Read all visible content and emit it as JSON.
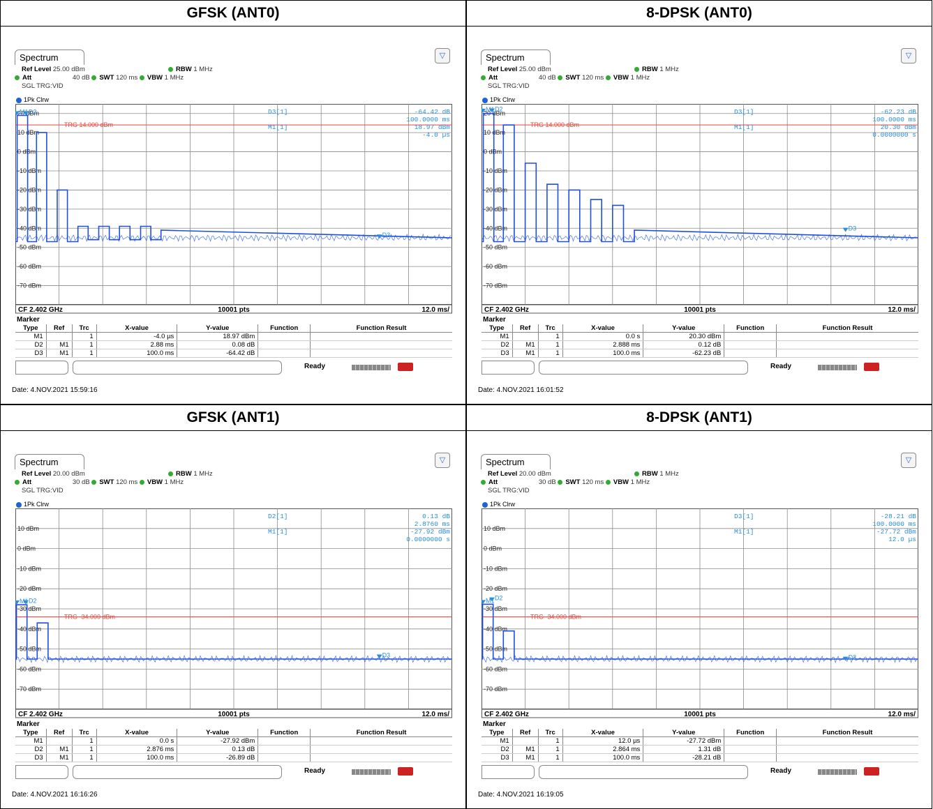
{
  "panels": [
    {
      "title": "GFSK (ANT0)",
      "tab": "Spectrum",
      "ref_level_label": "Ref Level",
      "ref_level_value": "25.00 dBm",
      "att_label": "Att",
      "att_value": "40 dB",
      "swt_label": "SWT",
      "swt_value": "120 ms",
      "rbw_label": "RBW",
      "rbw_value": "1 MHz",
      "vbw_label": "VBW",
      "vbw_value": "1 MHz",
      "trigger": "SGL TRG:VID",
      "trace": "1Pk Clrw",
      "y_ticks": [
        "20 dBm",
        "10 dBm",
        "0 dBm",
        "-10 dBm",
        "-20 dBm",
        "-30 dBm",
        "-40 dBm",
        "-50 dBm",
        "-60 dBm",
        "-70 dBm"
      ],
      "trg_label": "TRG  14.000 dBm",
      "readout_1_name": "D3[1]",
      "readout_1_value": "-64.42 dB",
      "readout_1_x": "100.0000 ms",
      "readout_2_name": "M1[1]",
      "readout_2_value": "18.97 dBm",
      "readout_2_x": "-4.0 µs",
      "footer_left": "CF 2.402 GHz",
      "footer_center": "10001 pts",
      "footer_right": "12.0 ms/",
      "table_headers": [
        "Type",
        "Ref",
        "Trc",
        "X-value",
        "Y-value",
        "Function",
        "Function Result"
      ],
      "rows": [
        [
          "M1",
          "",
          "1",
          "-4.0 µs",
          "18.97 dBm"
        ],
        [
          "D2",
          "M1",
          "1",
          "2.88 ms",
          "0.08 dB"
        ],
        [
          "D3",
          "M1",
          "1",
          "100.0 ms",
          "-64.42 dB"
        ]
      ],
      "status": "Ready",
      "date": "Date: 4.NOV.2021  15:59:16"
    },
    {
      "title": "8-DPSK (ANT0)",
      "tab": "Spectrum",
      "ref_level_label": "Ref Level",
      "ref_level_value": "25.00 dBm",
      "att_label": "Att",
      "att_value": "40 dB",
      "swt_label": "SWT",
      "swt_value": "120 ms",
      "rbw_label": "RBW",
      "rbw_value": "1 MHz",
      "vbw_label": "VBW",
      "vbw_value": "1 MHz",
      "trigger": "SGL TRG:VID",
      "trace": "1Pk Clrw",
      "y_ticks": [
        "20 dBm",
        "10 dBm",
        "0 dBm",
        "-10 dBm",
        "-20 dBm",
        "-30 dBm",
        "-40 dBm",
        "-50 dBm",
        "-60 dBm",
        "-70 dBm"
      ],
      "trg_label": "TRG  14.000 dBm",
      "readout_1_name": "D3[1]",
      "readout_1_value": "-62.23 dB",
      "readout_1_x": "100.0000 ms",
      "readout_2_name": "M1[1]",
      "readout_2_value": "20.30 dBm",
      "readout_2_x": "0.0000000 s",
      "footer_left": "CF 2.402 GHz",
      "footer_center": "10001 pts",
      "footer_right": "12.0 ms/",
      "table_headers": [
        "Type",
        "Ref",
        "Trc",
        "X-value",
        "Y-value",
        "Function",
        "Function Result"
      ],
      "rows": [
        [
          "M1",
          "",
          "1",
          "0.0 s",
          "20.30 dBm"
        ],
        [
          "D2",
          "M1",
          "1",
          "2.888 ms",
          "0.12 dB"
        ],
        [
          "D3",
          "M1",
          "1",
          "100.0 ms",
          "-62.23 dB"
        ]
      ],
      "status": "Ready",
      "date": "Date: 4.NOV.2021  16:01:52"
    },
    {
      "title": "GFSK (ANT1)",
      "tab": "Spectrum",
      "ref_level_label": "Ref Level",
      "ref_level_value": "20.00 dBm",
      "att_label": "Att",
      "att_value": "30 dB",
      "swt_label": "SWT",
      "swt_value": "120 ms",
      "rbw_label": "RBW",
      "rbw_value": "1 MHz",
      "vbw_label": "VBW",
      "vbw_value": "1 MHz",
      "trigger": "SGL TRG:VID",
      "trace": "1Pk Clrw",
      "y_ticks": [
        "10 dBm",
        "0 dBm",
        "-10 dBm",
        "-20 dBm",
        "-30 dBm",
        "-40 dBm",
        "-50 dBm",
        "-60 dBm",
        "-70 dBm"
      ],
      "trg_label": "TRG  -34.000 dBm",
      "readout_1_name": "D2[1]",
      "readout_1_value": "0.13 dB",
      "readout_1_x": "2.8760 ms",
      "readout_2_name": "M1[1]",
      "readout_2_value": "-27.92 dBm",
      "readout_2_x": "0.0000000 s",
      "footer_left": "CF 2.402 GHz",
      "footer_center": "10001 pts",
      "footer_right": "12.0 ms/",
      "table_headers": [
        "Type",
        "Ref",
        "Trc",
        "X-value",
        "Y-value",
        "Function",
        "Function Result"
      ],
      "rows": [
        [
          "M1",
          "",
          "1",
          "0.0 s",
          "-27.92 dBm"
        ],
        [
          "D2",
          "M1",
          "1",
          "2.876 ms",
          "0.13 dB"
        ],
        [
          "D3",
          "M1",
          "1",
          "100.0 ms",
          "-26.89 dB"
        ]
      ],
      "status": "Ready",
      "date": "Date: 4.NOV.2021  16:16:26"
    },
    {
      "title": "8-DPSK (ANT1)",
      "tab": "Spectrum",
      "ref_level_label": "Ref Level",
      "ref_level_value": "20.00 dBm",
      "att_label": "Att",
      "att_value": "30 dB",
      "swt_label": "SWT",
      "swt_value": "120 ms",
      "rbw_label": "RBW",
      "rbw_value": "1 MHz",
      "vbw_label": "VBW",
      "vbw_value": "1 MHz",
      "trigger": "SGL TRG:VID",
      "trace": "1Pk Clrw",
      "y_ticks": [
        "10 dBm",
        "0 dBm",
        "-10 dBm",
        "-20 dBm",
        "-30 dBm",
        "-40 dBm",
        "-50 dBm",
        "-60 dBm",
        "-70 dBm"
      ],
      "trg_label": "TRG  -34.000 dBm",
      "readout_1_name": "D3[1]",
      "readout_1_value": "-28.21 dB",
      "readout_1_x": "100.0000 ms",
      "readout_2_name": "M1[1]",
      "readout_2_value": "-27.72 dBm",
      "readout_2_x": "12.0 µs",
      "footer_left": "CF 2.402 GHz",
      "footer_center": "10001 pts",
      "footer_right": "12.0 ms/",
      "table_headers": [
        "Type",
        "Ref",
        "Trc",
        "X-value",
        "Y-value",
        "Function",
        "Function Result"
      ],
      "rows": [
        [
          "M1",
          "",
          "1",
          "12.0 µs",
          "-27.72 dBm"
        ],
        [
          "D2",
          "M1",
          "1",
          "2.864 ms",
          "1.31 dB"
        ],
        [
          "D3",
          "M1",
          "1",
          "100.0 ms",
          "-28.21 dB"
        ]
      ],
      "status": "Ready",
      "date": "Date: 4.NOV.2021  16:19:05"
    }
  ],
  "colors": {
    "trace": "#1f4fe0",
    "trigger_line": "#e8443a",
    "marker_text": "#2a8fd8",
    "grid": "#8a8a8a"
  },
  "chart_data": [
    {
      "type": "line",
      "xlabel": "",
      "ylabel": "",
      "xlim": [
        0,
        120
      ],
      "ylim": [
        -80,
        25
      ],
      "trigger_level_dbm": 14,
      "series": [
        {
          "x": [
            0,
            0.5,
            0.5,
            3.38,
            3.38,
            5.8,
            5.8,
            8.6,
            8.6,
            11.5,
            11.5,
            14.3,
            14.3,
            17.2,
            17.2,
            20,
            20,
            22.9,
            22.9,
            25.8,
            25.8,
            28.6,
            28.6,
            31.5,
            31.5,
            34.4,
            34.4,
            37.2,
            37.2,
            40,
            40,
            120
          ],
          "y": [
            -47,
            -47,
            19,
            19,
            -47,
            -47,
            10,
            10,
            -47,
            -47,
            -20,
            -20,
            -47,
            -47,
            -39,
            -39,
            -46,
            -46,
            -39,
            -39,
            -46,
            -46,
            -39,
            -39,
            -46,
            -46,
            -39,
            -39,
            -46,
            -46,
            -41,
            -45
          ]
        }
      ],
      "markers": [
        {
          "name": "M1",
          "x": -0.004,
          "y": 18.97
        },
        {
          "name": "D2",
          "x": 2.88,
          "y": 19.05
        },
        {
          "name": "D3",
          "x": 100.0,
          "y": -45.45
        }
      ]
    },
    {
      "type": "line",
      "xlabel": "",
      "ylabel": "",
      "xlim": [
        0,
        120
      ],
      "ylim": [
        -80,
        25
      ],
      "trigger_level_dbm": 14,
      "series": [
        {
          "x": [
            0,
            0.5,
            0.5,
            3.4,
            3.4,
            6,
            6,
            9,
            9,
            12,
            12,
            15,
            15,
            18,
            18,
            21,
            21,
            24,
            24,
            27,
            27,
            30,
            30,
            33,
            33,
            36,
            36,
            39,
            39,
            42,
            42,
            120
          ],
          "y": [
            -47,
            -47,
            20,
            20,
            -47,
            -47,
            14,
            14,
            -47,
            -47,
            -6,
            -6,
            -47,
            -47,
            -17,
            -17,
            -47,
            -47,
            -20,
            -20,
            -47,
            -47,
            -25,
            -25,
            -47,
            -47,
            -28,
            -28,
            -47,
            -47,
            -41,
            -45
          ]
        }
      ],
      "markers": [
        {
          "name": "M1",
          "x": 0.0,
          "y": 20.3
        },
        {
          "name": "D2",
          "x": 2.888,
          "y": 20.42
        },
        {
          "name": "D3",
          "x": 100.0,
          "y": -41.93
        }
      ]
    },
    {
      "type": "line",
      "xlabel": "",
      "ylabel": "",
      "xlim": [
        0,
        120
      ],
      "ylim": [
        -80,
        20
      ],
      "trigger_level_dbm": -34,
      "series": [
        {
          "x": [
            0,
            0.3,
            0.3,
            3.2,
            3.2,
            6,
            6,
            9,
            9,
            120
          ],
          "y": [
            -55,
            -55,
            -28,
            -28,
            -55,
            -55,
            -37,
            -37,
            -55,
            -55
          ]
        }
      ],
      "markers": [
        {
          "name": "M1",
          "x": 0.0,
          "y": -27.92
        },
        {
          "name": "D2",
          "x": 2.876,
          "y": -27.79
        },
        {
          "name": "D3",
          "x": 100.0,
          "y": -54.81
        }
      ]
    },
    {
      "type": "line",
      "xlabel": "",
      "ylabel": "",
      "xlim": [
        0,
        120
      ],
      "ylim": [
        -80,
        20
      ],
      "trigger_level_dbm": -34,
      "series": [
        {
          "x": [
            0,
            0.3,
            0.3,
            3.2,
            3.2,
            6,
            6,
            9,
            9,
            120
          ],
          "y": [
            -55,
            -55,
            -27.7,
            -27.7,
            -55,
            -55,
            -41,
            -41,
            -55,
            -55
          ]
        }
      ],
      "markers": [
        {
          "name": "M1",
          "x": 0.012,
          "y": -27.72
        },
        {
          "name": "D2",
          "x": 2.864,
          "y": -26.41
        },
        {
          "name": "D3",
          "x": 100.0,
          "y": -55.93
        }
      ]
    }
  ]
}
